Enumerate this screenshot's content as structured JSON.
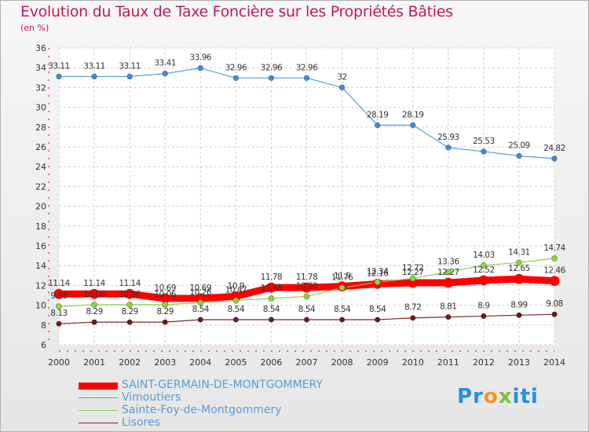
{
  "chart_data": {
    "type": "line",
    "title": "Evolution du Taux de Taxe Foncière sur les Propriétés Bâties",
    "subtitle": "(en %)",
    "xlabel": "",
    "ylabel": "",
    "x": [
      "2000",
      "2001",
      "2002",
      "2003",
      "2004",
      "2005",
      "2006",
      "2007",
      "2008",
      "2009",
      "2010",
      "2011",
      "2012",
      "2013",
      "2014"
    ],
    "ylim": [
      6,
      36
    ],
    "yticks": [
      6,
      8,
      10,
      12,
      14,
      16,
      18,
      20,
      22,
      24,
      26,
      28,
      30,
      32,
      34,
      36
    ],
    "grid": true,
    "legend_position": "bottom-left",
    "series": [
      {
        "name": "SAINT-GERMAIN-DE-MONTGOMMERY",
        "color": "#ff0000",
        "values": [
          11.14,
          11.14,
          11.14,
          10.69,
          10.69,
          10.9,
          11.78,
          11.78,
          11.9,
          12.16,
          12.27,
          12.27,
          12.52,
          12.65,
          12.46
        ],
        "labels": [
          "11.14",
          "11.14",
          "11.14",
          "10.69",
          "10.69",
          "10.9",
          "11.78",
          "11.78",
          "11.9",
          "12.16",
          "12.27",
          "12.27",
          "12.52",
          "12.65",
          "12.46"
        ]
      },
      {
        "name": "Vimoutiers",
        "color": "#5b9bd5",
        "values": [
          33.11,
          33.11,
          33.11,
          33.41,
          33.96,
          32.96,
          32.96,
          32.96,
          32,
          28.19,
          28.19,
          25.93,
          25.53,
          25.09,
          24.82
        ],
        "labels": [
          "33.11",
          "33.11",
          "33.11",
          "33.41",
          "33.96",
          "32.96",
          "32.96",
          "32.96",
          "32",
          "28.19",
          "28.19",
          "25.93",
          "25.53",
          "25.09",
          "24.82"
        ]
      },
      {
        "name": "Sainte-Foy-de-Montgommery",
        "color": "#8fd14f",
        "values": [
          9.88,
          10.06,
          10.06,
          10.06,
          10.26,
          10.47,
          10.68,
          10.89,
          11.76,
          12.34,
          12.72,
          13.36,
          14.03,
          14.31,
          14.74
        ],
        "labels": [
          "9.88",
          "10.06",
          "10.06",
          "10.06",
          "10.26",
          "10.47",
          "10.68",
          "10.89",
          "11.76",
          "12.34",
          "12.72",
          "13.36",
          "14.03",
          "14.31",
          "14.74"
        ]
      },
      {
        "name": "Lisores",
        "color": "#7b2a2a",
        "values": [
          8.13,
          8.29,
          8.29,
          8.29,
          8.54,
          8.54,
          8.54,
          8.54,
          8.54,
          8.54,
          8.72,
          8.81,
          8.9,
          8.99,
          9.08
        ],
        "labels": [
          "8.13",
          "8.29",
          "8.29",
          "8.29",
          "8.54",
          "8.54",
          "8.54",
          "8.54",
          "8.54",
          "8.54",
          "8.72",
          "8.81",
          "8.9",
          "8.99",
          "9.08"
        ]
      }
    ]
  },
  "brand": {
    "p": "Pr",
    "o": "o",
    "x": "x",
    "rest": "iti"
  }
}
